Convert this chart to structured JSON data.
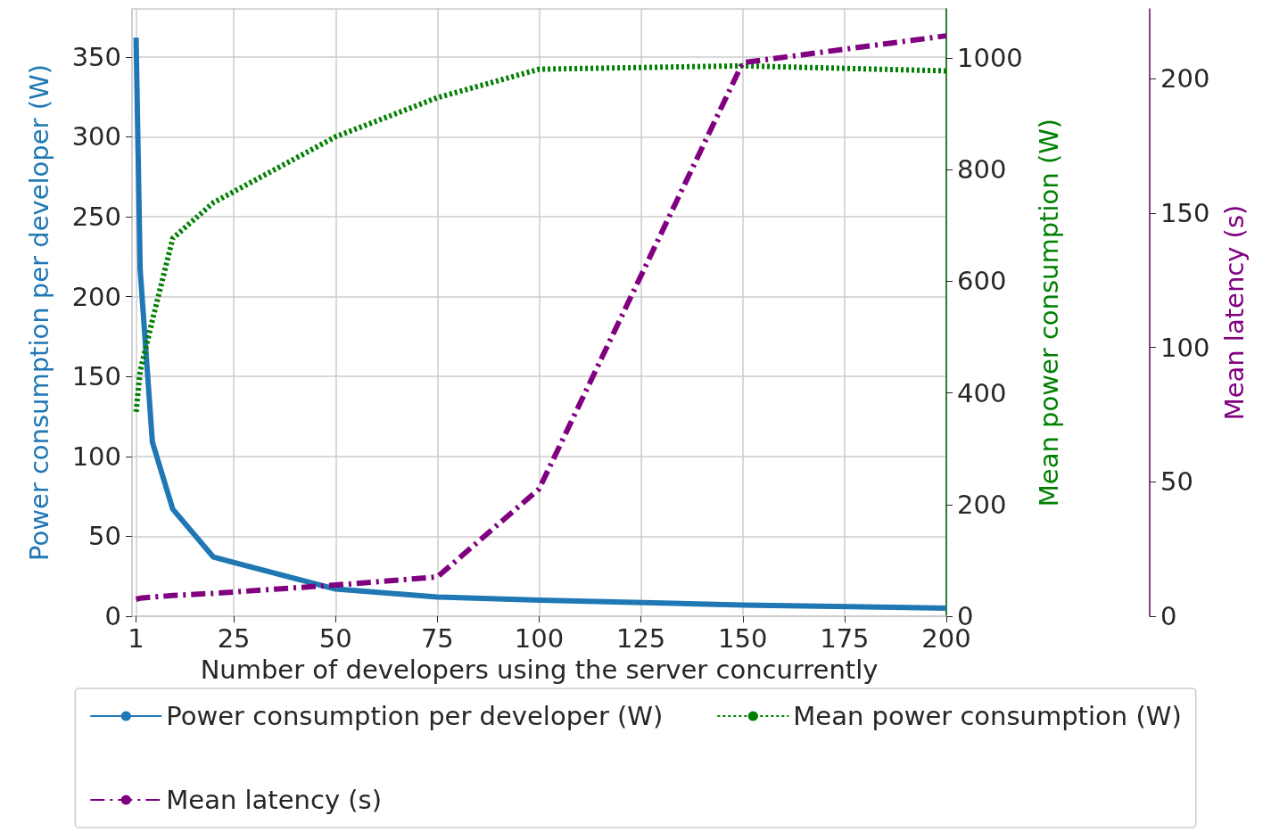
{
  "chart_data": {
    "type": "line",
    "xlabel": "Number of developers using the server concurrently",
    "ylabel": "Power consumption per developer (W)",
    "y2label": "Mean power consumption (W)",
    "y3label": "Mean latency (s)",
    "x": [
      1,
      2,
      5,
      10,
      20,
      50,
      75,
      100,
      150,
      200
    ],
    "series": [
      {
        "name": "Power consumption per developer (W)",
        "color": "#1f77b4",
        "line_style": "solid",
        "values": [
          362,
          217,
          109,
          67,
          37,
          17,
          12,
          10,
          7,
          5
        ]
      },
      {
        "name": "Mean power consumption (W)",
        "color": "#008000",
        "line_style": "dotted",
        "axis": "y2",
        "values": [
          366,
          439,
          530,
          677,
          741,
          859,
          929,
          980,
          986,
          977
        ]
      },
      {
        "name": "Mean latency (s)",
        "color": "#800080",
        "line_style": "dashdot",
        "axis": "y3",
        "values": [
          6.3,
          6.7,
          7.1,
          7.7,
          8.5,
          11.6,
          14.6,
          47.4,
          206,
          216
        ]
      }
    ],
    "xlim": [
      0,
      200
    ],
    "xticks": [
      1,
      25,
      50,
      75,
      100,
      125,
      150,
      175,
      200
    ],
    "ylim": [
      0,
      380
    ],
    "yticks": [
      0,
      50,
      100,
      150,
      200,
      250,
      300,
      350
    ],
    "y2lim": [
      0,
      1088
    ],
    "y2ticks": [
      0,
      200,
      400,
      600,
      800,
      1000
    ],
    "y3lim": [
      0,
      226
    ],
    "y3ticks": [
      0,
      50,
      100,
      150,
      200
    ],
    "grid": true,
    "legend": "bottom",
    "marker": "none"
  }
}
